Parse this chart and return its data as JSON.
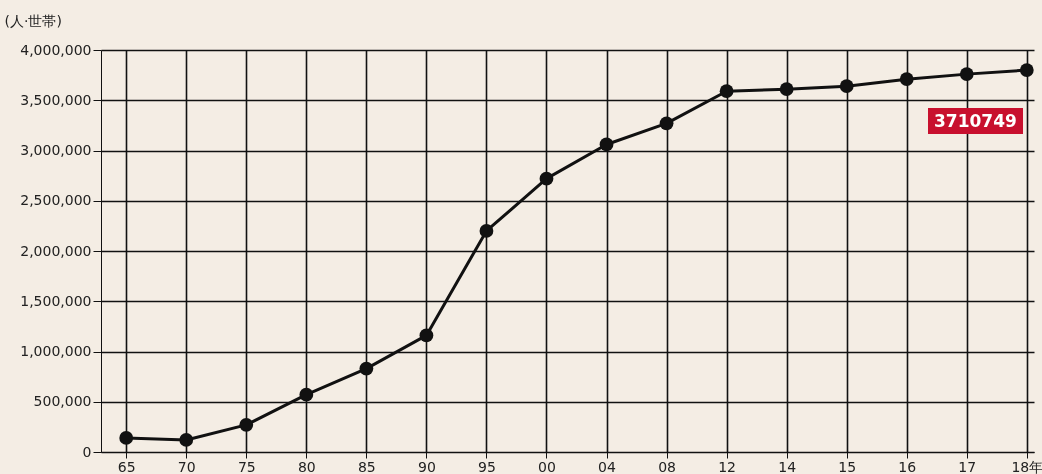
{
  "chart_data": {
    "type": "line",
    "ylabel": "(人·世帯)",
    "categories": [
      "65",
      "70",
      "75",
      "80",
      "85",
      "90",
      "95",
      "00",
      "04",
      "08",
      "12",
      "14",
      "15",
      "16",
      "17",
      "18年"
    ],
    "series": [
      {
        "color": "#111111",
        "values": [
          140000,
          120000,
          270000,
          570000,
          830000,
          1160000,
          2200000,
          2720000,
          3060000,
          3270000,
          3590000,
          3610000,
          3640000,
          3710000,
          3760000,
          3800000
        ]
      }
    ],
    "ylim": [
      0,
      4000000
    ],
    "yticks": [
      0,
      {
        "value": 500000,
        "label": "500,000"
      },
      {
        "value": 1000000,
        "label": "1,000,000"
      },
      {
        "value": 1500000,
        "label": "1,500,000"
      },
      {
        "value": 2000000,
        "label": "2,000,000"
      },
      {
        "value": 2500000,
        "label": "2,500,000"
      },
      {
        "value": 3000000,
        "label": "3,000,000"
      },
      {
        "value": 3500000,
        "label": "3,500,000"
      },
      {
        "value": 4000000,
        "label": "4,000,000"
      }
    ],
    "grid": true,
    "marker": "circle",
    "line_style": "solid",
    "annotations": [
      "3710749"
    ]
  }
}
